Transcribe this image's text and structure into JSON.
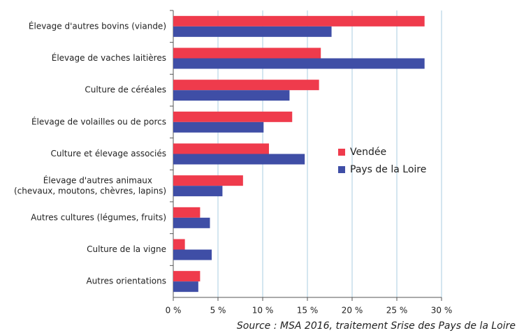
{
  "chart_data": {
    "type": "hbar",
    "categories": [
      "Élevage d'autres bovins (viande)",
      "Élevage de vaches laitières",
      "Culture de céréales",
      "Élevage de volailles ou de porcs",
      "Culture et élevage associés",
      "Élevage d'autres animaux\n(chevaux, moutons, chèvres, lapins)",
      "Autres cultures (légumes, fruits)",
      "Culture de la vigne",
      "Autres orientations"
    ],
    "series": [
      {
        "name": "Vendée",
        "color": "#ef3b4c",
        "values": [
          28.1,
          16.5,
          16.3,
          13.3,
          10.7,
          7.8,
          3.0,
          1.3,
          3.0
        ]
      },
      {
        "name": "Pays de la Loire",
        "color": "#3f4ea6",
        "values": [
          17.7,
          28.1,
          13.0,
          10.1,
          14.7,
          5.5,
          4.1,
          4.3,
          2.8
        ]
      }
    ],
    "xlim": [
      0,
      30
    ],
    "xticks": [
      {
        "value": 0,
        "label": "0 %"
      },
      {
        "value": 5,
        "label": "5 %"
      },
      {
        "value": 10,
        "label": "10 %"
      },
      {
        "value": 15,
        "label": "15 %"
      },
      {
        "value": 20,
        "label": "20 %"
      },
      {
        "value": 25,
        "label": "25 %"
      },
      {
        "value": 30,
        "label": "30 %"
      }
    ],
    "grid": true,
    "source": "Source : MSA 2016, traitement Srise des Pays de la Loire"
  }
}
